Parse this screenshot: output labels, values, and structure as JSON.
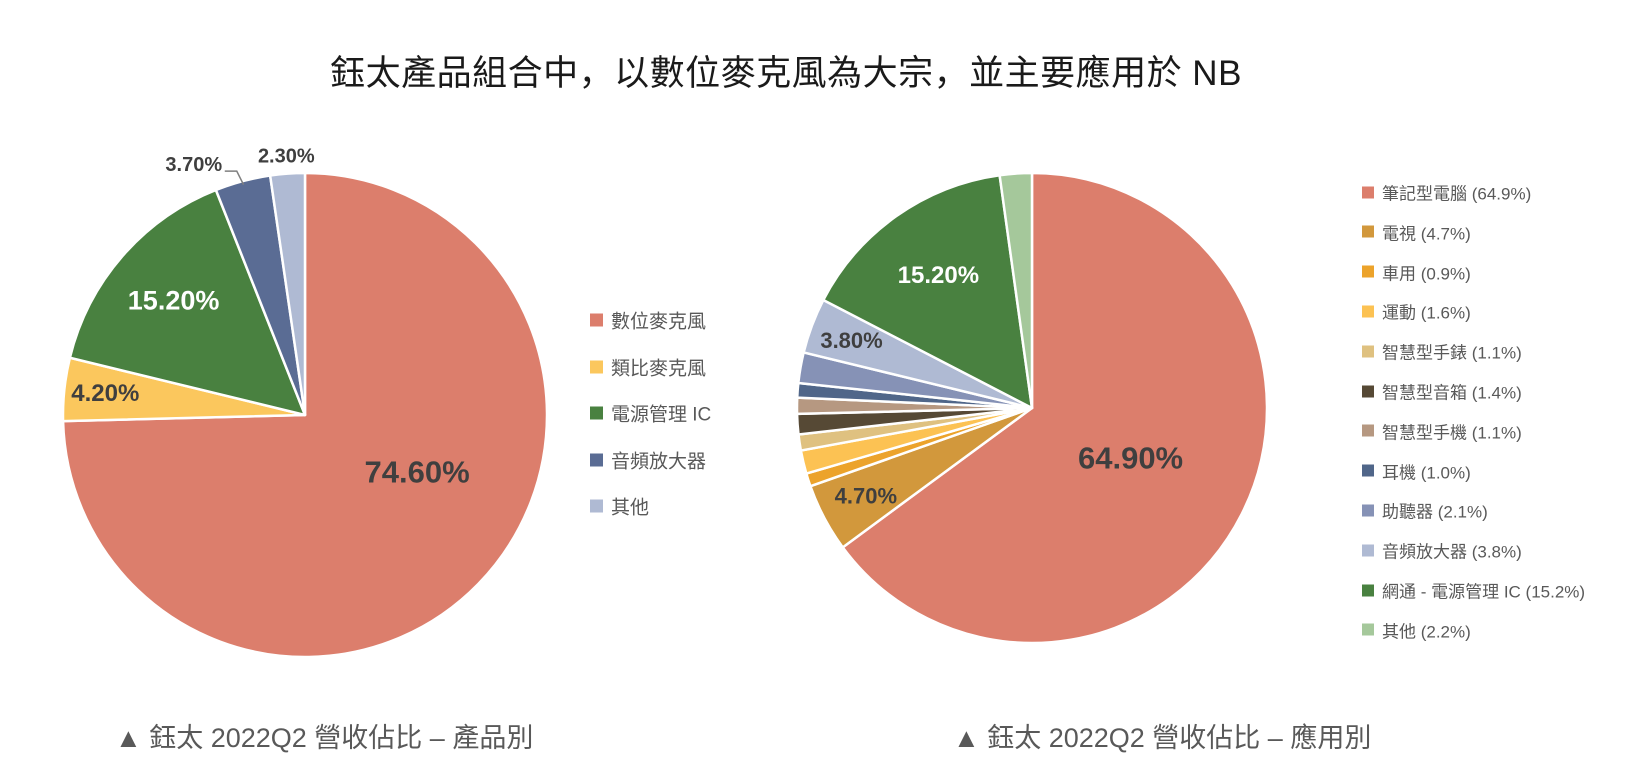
{
  "title": "鈺太產品組合中，以數位麥克風為大宗，並主要應用於 NB",
  "styles": {
    "title_color": "#1A1A1A",
    "legend_text_color": "#595959",
    "caption_color": "#595959",
    "data_label_dark": "#3F3F3F",
    "data_label_light": "#FFFFFF",
    "slice_separator": "#FFFFFF"
  },
  "chart_data": [
    {
      "type": "pie",
      "caption": "▲ 鈺太 2022Q2 營收佔比 – 產品別",
      "start_angle_deg": 0,
      "direction": "clockwise",
      "legend_position": "right",
      "slices": [
        {
          "label": "數位麥克風",
          "legend_label": "數位麥克風",
          "value": 74.6,
          "color": "#DC7E6C",
          "data_label": "74.60%",
          "label_placement": "inside",
          "label_r": 0.52,
          "label_angle": 117,
          "label_color": "#3F3F3F",
          "label_size": 31
        },
        {
          "label": "類比麥克風",
          "legend_label": "類比麥克風",
          "value": 4.2,
          "color": "#FBC75D",
          "data_label": "4.20%",
          "label_placement": "inside",
          "label_r": 0.83,
          "label_color": "#3F3F3F",
          "label_size": 24
        },
        {
          "label": "電源管理 IC",
          "legend_label": "電源管理 IC",
          "value": 15.2,
          "color": "#498140",
          "data_label": "15.20%",
          "label_placement": "inside",
          "label_r": 0.72,
          "label_color": "#FFFFFF",
          "label_size": 27
        },
        {
          "label": "音頻放大器",
          "legend_label": "音頻放大器",
          "value": 3.7,
          "color": "#5A6C94",
          "data_label": "3.70%",
          "label_placement": "outside",
          "label_r": 1.13,
          "label_angle": 336,
          "label_color": "#3F3F3F",
          "label_size": 20,
          "leader": true
        },
        {
          "label": "其他",
          "legend_label": "其他",
          "value": 2.3,
          "color": "#AFBAD3",
          "data_label": "2.30%",
          "label_placement": "outside",
          "label_r": 1.07,
          "label_color": "#3F3F3F",
          "label_size": 20
        }
      ]
    },
    {
      "type": "pie",
      "caption": "▲ 鈺太 2022Q2 營收佔比 – 應用別",
      "start_angle_deg": 0,
      "direction": "clockwise",
      "legend_position": "right",
      "slices": [
        {
          "label": "筆記型電腦",
          "legend_label": "筆記型電腦 (64.9%)",
          "value": 64.9,
          "color": "#DC7E6C",
          "data_label": "64.90%",
          "label_placement": "inside",
          "label_r": 0.47,
          "label_color": "#3F3F3F",
          "label_size": 31
        },
        {
          "label": "電視",
          "legend_label": "電視 (4.7%)",
          "value": 4.7,
          "color": "#D2983C",
          "data_label": "4.70%",
          "label_placement": "inside",
          "label_r": 0.8,
          "label_color": "#3F3F3F",
          "label_size": 22
        },
        {
          "label": "車用",
          "legend_label": "車用 (0.9%)",
          "value": 0.9,
          "color": "#ECA32B"
        },
        {
          "label": "運動",
          "legend_label": "運動 (1.6%)",
          "value": 1.6,
          "color": "#FCC253"
        },
        {
          "label": "智慧型手錶",
          "legend_label": "智慧型手錶 (1.1%)",
          "value": 1.1,
          "color": "#DFC180"
        },
        {
          "label": "智慧型音箱",
          "legend_label": "智慧型音箱 (1.4%)",
          "value": 1.4,
          "color": "#564935"
        },
        {
          "label": "智慧型手機",
          "legend_label": "智慧型手機 (1.1%)",
          "value": 1.1,
          "color": "#B69881"
        },
        {
          "label": "耳機",
          "legend_label": "耳機 (1.0%)",
          "value": 1.0,
          "color": "#506689"
        },
        {
          "label": "助聽器",
          "legend_label": "助聽器 (2.1%)",
          "value": 2.1,
          "color": "#8692B6"
        },
        {
          "label": "音頻放大器",
          "legend_label": "音頻放大器 (3.8%)",
          "value": 3.8,
          "color": "#AFBAD3",
          "data_label": "3.80%",
          "label_placement": "inside",
          "label_r": 0.82,
          "label_color": "#3F3F3F",
          "label_size": 22
        },
        {
          "label": "網通 - 電源管理 IC",
          "legend_label": "網通 - 電源管理 IC (15.2%)",
          "value": 15.2,
          "color": "#498140",
          "data_label": "15.20%",
          "label_placement": "inside",
          "label_r": 0.69,
          "label_color": "#FFFFFF",
          "label_size": 24
        },
        {
          "label": "其他",
          "legend_label": "其他 (2.2%)",
          "value": 2.2,
          "color": "#A5C89B"
        }
      ]
    }
  ]
}
